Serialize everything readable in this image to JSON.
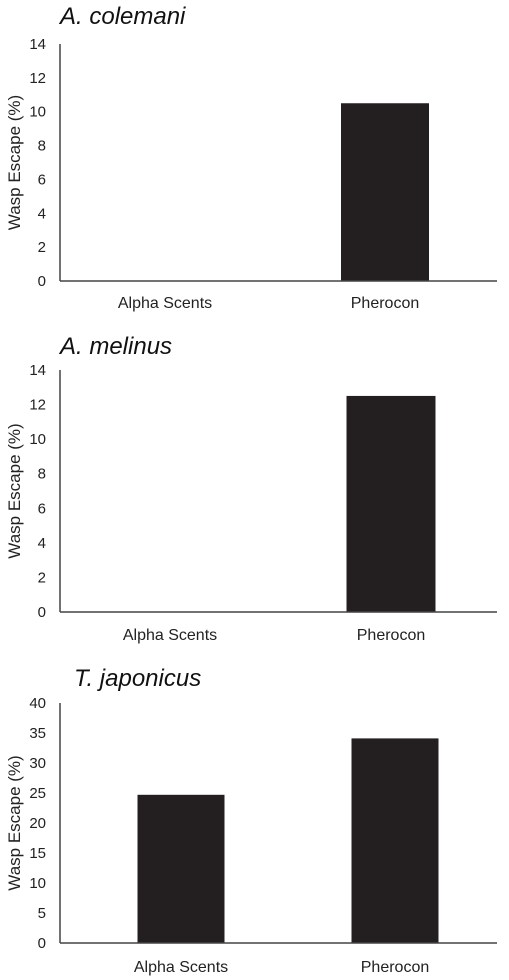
{
  "chart_data": [
    {
      "type": "bar",
      "title": "A. colemani",
      "ylabel": "Wasp Escape (%)",
      "categories": [
        "Alpha Scents",
        "Pherocon"
      ],
      "values": [
        0,
        10.5
      ],
      "ylim": [
        0,
        14
      ],
      "yticks": [
        "0",
        "2",
        "4",
        "6",
        "8",
        "10",
        "12",
        "14"
      ],
      "bar_color": "#231f20",
      "grid": false
    },
    {
      "type": "bar",
      "title": "A. melinus",
      "ylabel": "Wasp Escape (%)",
      "categories": [
        "Alpha Scents",
        "Pherocon"
      ],
      "values": [
        0,
        12.5
      ],
      "ylim": [
        0,
        14
      ],
      "yticks": [
        "0",
        "2",
        "4",
        "6",
        "8",
        "10",
        "12",
        "14"
      ],
      "bar_color": "#231f20",
      "grid": false
    },
    {
      "type": "bar",
      "title": "T. japonicus",
      "ylabel": "Wasp Escape (%)",
      "categories": [
        "Alpha Scents",
        "Pherocon"
      ],
      "values": [
        24.7,
        34.1
      ],
      "ylim": [
        0,
        40
      ],
      "yticks": [
        "0",
        "5",
        "10",
        "15",
        "20",
        "25",
        "30",
        "35",
        "40"
      ],
      "bar_color": "#231f20",
      "grid": false
    }
  ]
}
